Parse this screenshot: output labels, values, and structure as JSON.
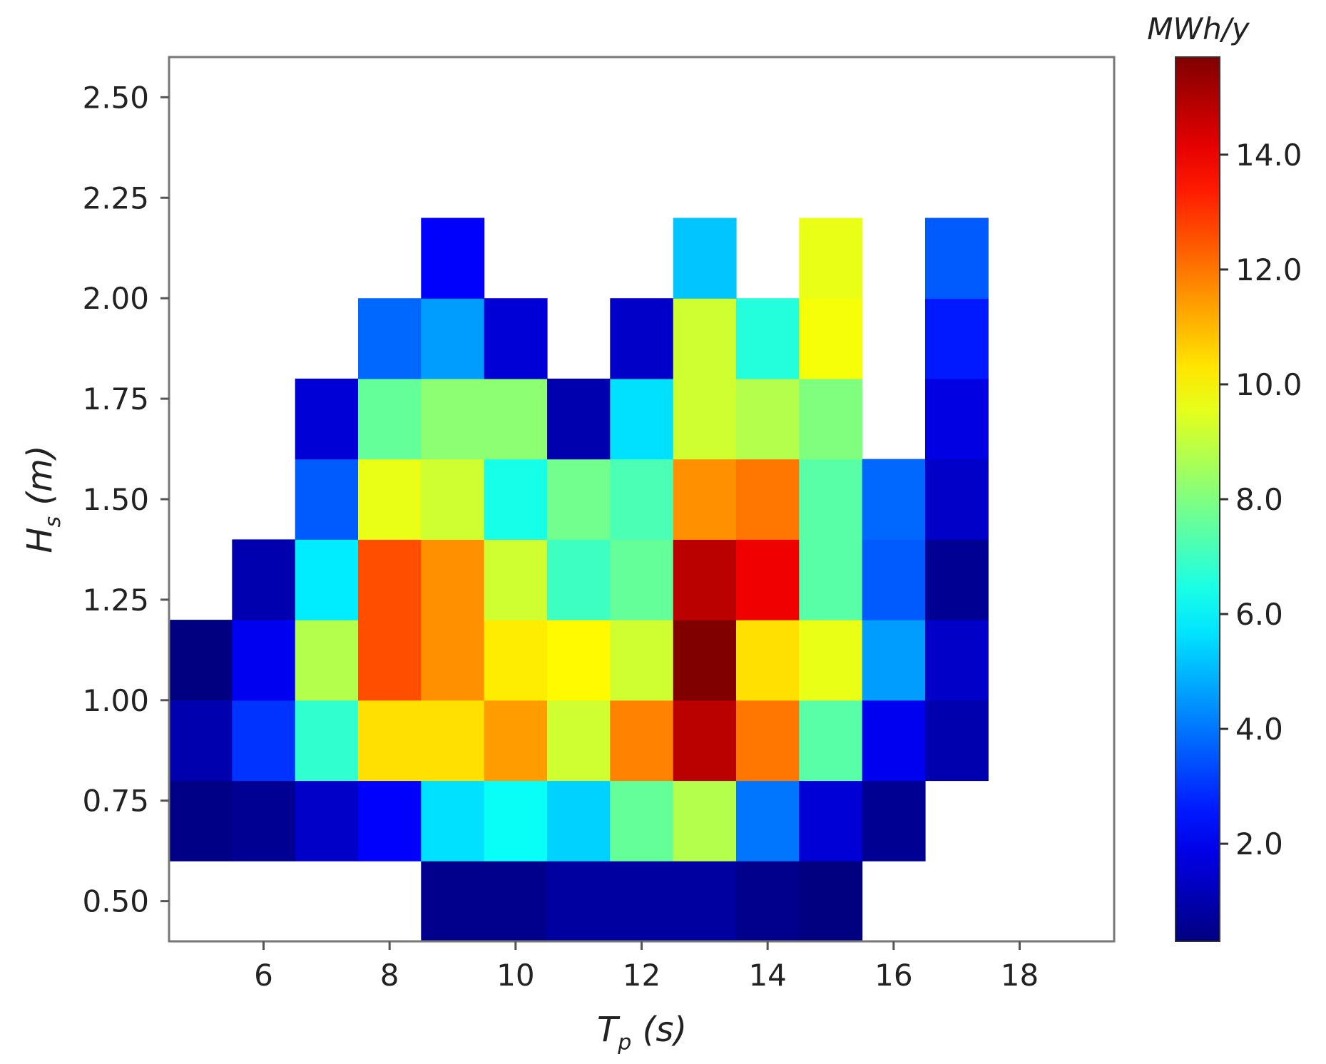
{
  "chart_data": {
    "type": "heatmap",
    "title": "",
    "xlabel_main": "T",
    "xlabel_sub": "p",
    "xlabel_unit": " (s)",
    "ylabel_main": "H",
    "ylabel_sub": "s",
    "ylabel_unit": " (m)",
    "colorbar_label": "MWh/y",
    "x_range": [
      4.5,
      19.5
    ],
    "y_range": [
      0.4,
      2.6
    ],
    "x_ticks": [
      6,
      8,
      10,
      12,
      14,
      16,
      18
    ],
    "x_tick_labels": [
      "6",
      "8",
      "10",
      "12",
      "14",
      "16",
      "18"
    ],
    "y_ticks": [
      0.5,
      0.75,
      1.0,
      1.25,
      1.5,
      1.75,
      2.0,
      2.25,
      2.5
    ],
    "y_tick_labels": [
      "0.50",
      "0.75",
      "1.00",
      "1.25",
      "1.50",
      "1.75",
      "2.00",
      "2.25",
      "2.50"
    ],
    "colorbar_range": [
      0.3,
      15.7
    ],
    "colorbar_ticks": [
      2,
      4,
      6,
      8,
      10,
      12,
      14
    ],
    "colorbar_tick_labels": [
      "2.0",
      "4.0",
      "6.0",
      "8.0",
      "10.0",
      "12.0",
      "14.0"
    ],
    "colormap": "jet",
    "x_centers": [
      5,
      6,
      7,
      8,
      9,
      10,
      11,
      12,
      13,
      14,
      15,
      16,
      17
    ],
    "y_centers": [
      0.5,
      0.7,
      0.9,
      1.1,
      1.3,
      1.5,
      1.7,
      1.9,
      2.1
    ],
    "values": [
      [
        null,
        null,
        null,
        null,
        0.5,
        0.5,
        0.8,
        0.8,
        0.8,
        0.5,
        0.3,
        null,
        null
      ],
      [
        0.4,
        0.6,
        1.4,
        2.2,
        5.6,
        6.2,
        5.4,
        7.6,
        8.8,
        4.0,
        1.6,
        0.6,
        null
      ],
      [
        1.0,
        3.0,
        6.8,
        10.4,
        10.4,
        11.4,
        9.2,
        11.8,
        14.8,
        12.0,
        7.4,
        2.0,
        1.0
      ],
      [
        0.3,
        2.0,
        8.8,
        12.6,
        11.6,
        10.2,
        10.0,
        9.2,
        15.7,
        10.4,
        9.6,
        4.6,
        1.4
      ],
      [
        null,
        1.0,
        5.8,
        12.6,
        11.6,
        9.2,
        7.0,
        7.6,
        14.8,
        14.0,
        7.4,
        3.6,
        0.6
      ],
      [
        null,
        null,
        3.6,
        9.6,
        9.2,
        6.4,
        7.8,
        7.2,
        11.6,
        12.0,
        7.4,
        3.8,
        1.4
      ],
      [
        null,
        null,
        1.6,
        7.6,
        8.2,
        8.2,
        1.0,
        5.6,
        9.2,
        8.8,
        8.0,
        null,
        1.8
      ],
      [
        null,
        null,
        null,
        3.8,
        4.6,
        1.6,
        null,
        1.4,
        9.2,
        6.6,
        9.8,
        null,
        2.6
      ],
      [
        null,
        null,
        null,
        null,
        2.2,
        null,
        null,
        null,
        5.2,
        null,
        9.6,
        null,
        3.6
      ]
    ],
    "grid": false,
    "legend": "colorbar-right"
  }
}
